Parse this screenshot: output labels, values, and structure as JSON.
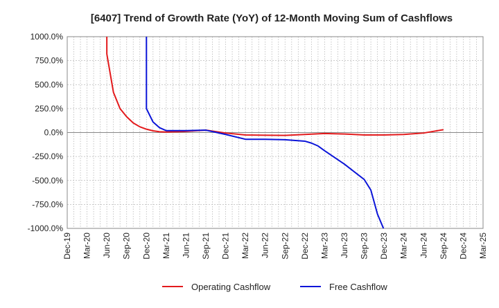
{
  "chart_data": {
    "type": "line",
    "title": "[6407]  Trend of Growth Rate (YoY) of 12-Month Moving Sum of Cashflows",
    "xlabel": "",
    "ylabel": "",
    "ylim": [
      -1000,
      1000
    ],
    "xlim": [
      "2019-12",
      "2025-03"
    ],
    "grid": true,
    "legend_position": "bottom",
    "y_ticks": [
      "1000.0%",
      "750.0%",
      "500.0%",
      "250.0%",
      "0.0%",
      "-250.0%",
      "-500.0%",
      "-750.0%",
      "-1000.0%"
    ],
    "x_ticks": [
      "Dec-19",
      "Mar-20",
      "Jun-20",
      "Sep-20",
      "Dec-20",
      "Mar-21",
      "Jun-21",
      "Sep-21",
      "Dec-21",
      "Mar-22",
      "Jun-22",
      "Sep-22",
      "Dec-22",
      "Mar-23",
      "Jun-23",
      "Sep-23",
      "Dec-23",
      "Mar-24",
      "Jun-24",
      "Sep-24",
      "Dec-24",
      "Mar-25"
    ],
    "series": [
      {
        "name": "Operating Cashflow",
        "color": "#e31a1c",
        "points": [
          [
            "2020-06",
            1000
          ],
          [
            "2020-06",
            820
          ],
          [
            "2020-07",
            420
          ],
          [
            "2020-08",
            250
          ],
          [
            "2020-09",
            165
          ],
          [
            "2020-10",
            100
          ],
          [
            "2020-11",
            60
          ],
          [
            "2020-12",
            35
          ],
          [
            "2021-01",
            18
          ],
          [
            "2021-02",
            8
          ],
          [
            "2021-03",
            5
          ],
          [
            "2021-06",
            12
          ],
          [
            "2021-09",
            25
          ],
          [
            "2021-12",
            -5
          ],
          [
            "2022-03",
            -25
          ],
          [
            "2022-06",
            -28
          ],
          [
            "2022-09",
            -30
          ],
          [
            "2022-12",
            -20
          ],
          [
            "2023-03",
            -10
          ],
          [
            "2023-06",
            -15
          ],
          [
            "2023-09",
            -25
          ],
          [
            "2023-12",
            -25
          ],
          [
            "2024-03",
            -20
          ],
          [
            "2024-06",
            -5
          ],
          [
            "2024-09",
            30
          ]
        ]
      },
      {
        "name": "Free Cashflow",
        "color": "#0a14d8",
        "points": [
          [
            "2020-12",
            1000
          ],
          [
            "2020-12",
            250
          ],
          [
            "2021-01",
            110
          ],
          [
            "2021-02",
            50
          ],
          [
            "2021-03",
            20
          ],
          [
            "2021-06",
            20
          ],
          [
            "2021-09",
            25
          ],
          [
            "2021-12",
            -20
          ],
          [
            "2022-03",
            -70
          ],
          [
            "2022-06",
            -70
          ],
          [
            "2022-09",
            -75
          ],
          [
            "2022-12",
            -90
          ],
          [
            "2023-01",
            -110
          ],
          [
            "2023-02",
            -140
          ],
          [
            "2023-03",
            -190
          ],
          [
            "2023-06",
            -330
          ],
          [
            "2023-09",
            -490
          ],
          [
            "2023-10",
            -600
          ],
          [
            "2023-11",
            -850
          ],
          [
            "2023-12",
            -1000
          ]
        ]
      }
    ]
  }
}
